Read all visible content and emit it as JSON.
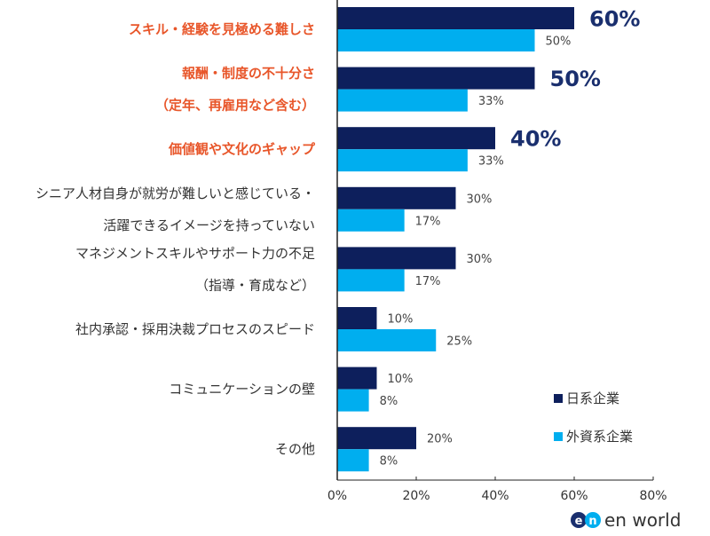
{
  "chart_data": {
    "type": "bar",
    "orientation": "horizontal",
    "categories": [
      [
        "スキル・経験を見極める難しさ"
      ],
      [
        "報酬・制度の不十分さ",
        "（定年、再雇用など含む）"
      ],
      [
        "価値観や文化のギャップ"
      ],
      [
        "シニア人材自身が就労が難しいと感じている・",
        "活躍できるイメージを持っていない"
      ],
      [
        "マネジメントスキルやサポート力の不足",
        "（指導・育成など）"
      ],
      [
        "社内承認・採用決裁プロセスのスピード"
      ],
      [
        "コミュニケーションの壁"
      ],
      [
        "その他"
      ]
    ],
    "highlighted_categories": [
      0,
      1,
      2
    ],
    "series": [
      {
        "name": "日系企業",
        "color": "#0d1f5c",
        "values": [
          60,
          50,
          40,
          30,
          30,
          10,
          10,
          20
        ],
        "labels": [
          "60%",
          "50%",
          "40%",
          "30%",
          "30%",
          "10%",
          "10%",
          "20%"
        ]
      },
      {
        "name": "外資系企業",
        "color": "#00aeef",
        "values": [
          50,
          33,
          33,
          17,
          17,
          25,
          8,
          8
        ],
        "labels": [
          "50%",
          "33%",
          "33%",
          "17%",
          "17%",
          "25%",
          "8%",
          "8%"
        ]
      }
    ],
    "xlim": [
      0,
      80
    ],
    "xticks": [
      "0%",
      "20%",
      "40%",
      "60%",
      "80%"
    ],
    "highlight_color": "#e8562a",
    "legend_position": "bottom-right",
    "grid": false
  },
  "logo": {
    "text": "en world"
  }
}
